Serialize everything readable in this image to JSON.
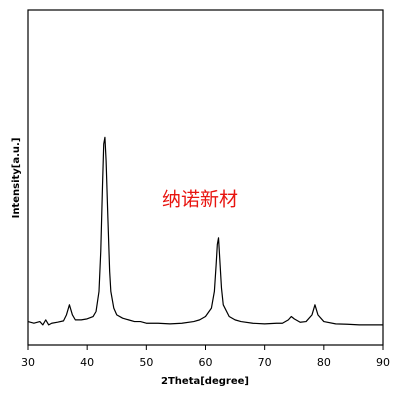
{
  "chart_data": {
    "type": "line",
    "xlabel": "2Theta[degree]",
    "ylabel": "Intensity[a.u.]",
    "annotation": "纳诺新材",
    "xlim": [
      30,
      90
    ],
    "xticks": [
      30,
      40,
      50,
      60,
      70,
      80,
      90
    ],
    "ylim": [
      0,
      100
    ],
    "series": [
      {
        "color": "#000000",
        "x": [
          30,
          31,
          32,
          32.5,
          33,
          33.5,
          34,
          35,
          36,
          36.5,
          37,
          37.5,
          38,
          39,
          40,
          41,
          41.5,
          42,
          42.3,
          42.6,
          42.8,
          43,
          43.2,
          43.5,
          43.8,
          44,
          44.5,
          45,
          46,
          47,
          48,
          49,
          50,
          52,
          54,
          56,
          58,
          59,
          60,
          61,
          61.5,
          61.8,
          62,
          62.2,
          62.4,
          62.7,
          63,
          64,
          65,
          66,
          68,
          70,
          72,
          73,
          74,
          74.5,
          75,
          76,
          77,
          78,
          78.5,
          79,
          80,
          82,
          84,
          86,
          88,
          90
        ],
        "values": [
          7,
          6.5,
          7,
          6,
          7.5,
          6,
          6.5,
          6.8,
          7.2,
          9,
          12,
          9,
          7.5,
          7.5,
          7.8,
          8.5,
          10,
          16,
          28,
          48,
          60,
          62,
          55,
          38,
          22,
          16,
          11,
          9,
          8,
          7.5,
          7,
          7,
          6.5,
          6.5,
          6.3,
          6.5,
          7,
          7.5,
          8.5,
          11,
          16,
          24,
          30,
          32,
          26,
          17,
          12,
          8.5,
          7.5,
          7,
          6.5,
          6.3,
          6.5,
          6.5,
          7.5,
          8.5,
          7.8,
          6.8,
          7,
          9,
          12,
          9,
          7,
          6.3,
          6.2,
          6,
          6,
          6
        ]
      }
    ]
  }
}
